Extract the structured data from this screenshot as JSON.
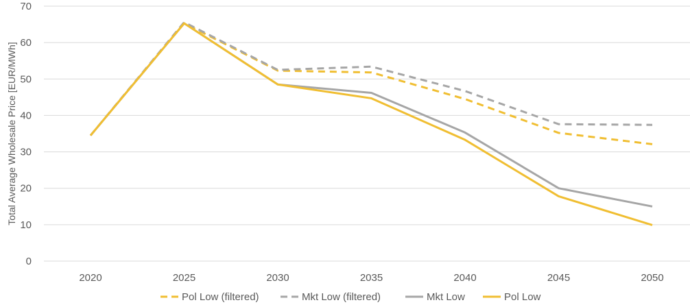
{
  "chart_data": {
    "type": "line",
    "ylabel": "Total Average Wholesale Price [EUR/MWh]",
    "xlabel": "",
    "x": [
      "2020",
      "2025",
      "2030",
      "2035",
      "2040",
      "2045",
      "2050"
    ],
    "ylim": [
      0,
      70
    ],
    "yticks": [
      0,
      10,
      20,
      30,
      40,
      50,
      60,
      70
    ],
    "grid": true,
    "legend_position": "bottom",
    "series": [
      {
        "name": "Pol Low (filtered)",
        "color": "#F0BE32",
        "dash": true,
        "values": [
          34.5,
          65.3,
          52.3,
          51.8,
          44.5,
          35.2,
          32.1
        ]
      },
      {
        "name": "Mkt Low (filtered)",
        "color": "#A6A6A6",
        "dash": true,
        "values": [
          34.5,
          65.6,
          52.5,
          53.4,
          46.7,
          37.6,
          37.4
        ]
      },
      {
        "name": "Mkt Low",
        "color": "#A6A6A6",
        "dash": false,
        "values": [
          34.5,
          65.3,
          48.5,
          46.2,
          35.3,
          20.0,
          15.0
        ]
      },
      {
        "name": "Pol Low",
        "color": "#F0BE32",
        "dash": false,
        "values": [
          34.5,
          65.3,
          48.5,
          44.7,
          33.3,
          17.8,
          9.9
        ]
      }
    ]
  }
}
